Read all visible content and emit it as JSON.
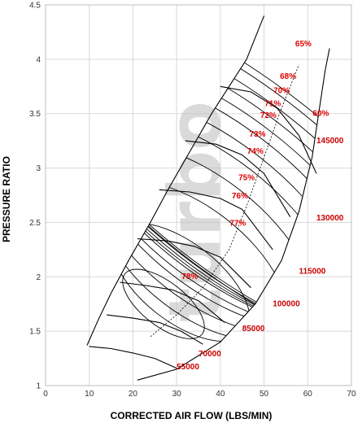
{
  "chart_data": {
    "type": "line",
    "title": "",
    "xlabel": "CORRECTED AIR FLOW (LBS/MIN)",
    "ylabel": "PRESSURE RATIO",
    "xlim": [
      0,
      70
    ],
    "ylim": [
      1,
      4.5
    ],
    "x_ticks": [
      "0",
      "10",
      "20",
      "30",
      "40",
      "50",
      "60",
      "70"
    ],
    "y_ticks": [
      "1",
      "1.5",
      "2",
      "2.5",
      "3",
      "3.5",
      "4",
      "4.5"
    ],
    "grid": true,
    "watermark": "turbo",
    "surge_line": [
      [
        9.5,
        1.37
      ],
      [
        12,
        1.6
      ],
      [
        15,
        1.85
      ],
      [
        19,
        2.15
      ],
      [
        24,
        2.5
      ],
      [
        28,
        2.8
      ],
      [
        33,
        3.15
      ],
      [
        38,
        3.5
      ],
      [
        42,
        3.75
      ],
      [
        46,
        4.0
      ],
      [
        49,
        4.3
      ],
      [
        50,
        4.4
      ]
    ],
    "choke_line": [
      [
        21,
        1.05
      ],
      [
        30,
        1.15
      ],
      [
        40,
        1.4
      ],
      [
        48,
        1.75
      ],
      [
        54,
        2.15
      ],
      [
        58,
        2.6
      ],
      [
        61,
        3.1
      ],
      [
        62.5,
        3.5
      ],
      [
        64,
        3.9
      ],
      [
        65,
        4.1
      ]
    ],
    "speed_lines": [
      {
        "name": "55000",
        "points": [
          [
            10,
            1.36
          ],
          [
            15,
            1.34
          ],
          [
            20,
            1.3
          ],
          [
            25,
            1.25
          ],
          [
            30,
            1.16
          ]
        ]
      },
      {
        "name": "70000",
        "points": [
          [
            14,
            1.65
          ],
          [
            20,
            1.62
          ],
          [
            26,
            1.58
          ],
          [
            31,
            1.5
          ],
          [
            36,
            1.38
          ]
        ]
      },
      {
        "name": "85000",
        "points": [
          [
            17,
            1.95
          ],
          [
            23,
            1.92
          ],
          [
            29,
            1.88
          ],
          [
            35,
            1.78
          ],
          [
            41,
            1.58
          ]
        ]
      },
      {
        "name": "100000",
        "points": [
          [
            21,
            2.35
          ],
          [
            28,
            2.33
          ],
          [
            34,
            2.28
          ],
          [
            40,
            2.18
          ],
          [
            47,
            1.9
          ]
        ]
      },
      {
        "name": "115000",
        "points": [
          [
            26,
            2.8
          ],
          [
            33,
            2.78
          ],
          [
            40,
            2.72
          ],
          [
            45,
            2.62
          ],
          [
            52,
            2.25
          ]
        ]
      },
      {
        "name": "130000",
        "points": [
          [
            32,
            3.25
          ],
          [
            39,
            3.22
          ],
          [
            45,
            3.12
          ],
          [
            50,
            2.95
          ],
          [
            56,
            2.55
          ]
        ]
      },
      {
        "name": "145000",
        "points": [
          [
            40,
            3.75
          ],
          [
            47,
            3.7
          ],
          [
            53,
            3.55
          ],
          [
            58,
            3.3
          ],
          [
            62,
            2.95
          ]
        ]
      }
    ],
    "speed_label_positions": [
      [
        30,
        1.15
      ],
      [
        35,
        1.27
      ],
      [
        45,
        1.5
      ],
      [
        52,
        1.73
      ],
      [
        58,
        2.03
      ],
      [
        62,
        2.52
      ],
      [
        62,
        3.23
      ]
    ],
    "efficiency_islands": [
      {
        "label": "78%",
        "center": [
          27,
          1.75
        ],
        "rx": 5,
        "ry": 0.45
      },
      {
        "label": "77%",
        "center": [
          31,
          1.95
        ],
        "rx": 9,
        "ry": 0.75
      },
      {
        "label": "76%",
        "center": [
          34,
          2.15
        ],
        "rx": 12,
        "ry": 1.0
      },
      {
        "label": "75%",
        "center": [
          36,
          2.35
        ],
        "rx": 14,
        "ry": 1.2
      },
      {
        "label": "74%",
        "center": [
          38,
          2.5
        ],
        "rx": 15,
        "ry": 1.35
      },
      {
        "label": "73%",
        "center": [
          39,
          2.6
        ],
        "rx": 16,
        "ry": 1.5
      },
      {
        "label": "72%",
        "center": [
          40,
          2.7
        ],
        "rx": 17,
        "ry": 1.65
      },
      {
        "label": "71%",
        "center": [
          41,
          2.75
        ],
        "rx": 18,
        "ry": 1.8
      },
      {
        "label": "70%",
        "center": [
          42,
          2.8
        ],
        "rx": 19,
        "ry": 1.95
      },
      {
        "label": "68%",
        "center": [
          43,
          2.85
        ],
        "rx": 20,
        "ry": 2.1
      },
      {
        "label": "65%",
        "center": [
          44,
          2.9
        ],
        "rx": 21,
        "ry": 2.3
      },
      {
        "label": "60%",
        "center": [
          45,
          2.9
        ],
        "rx": 22,
        "ry": 2.5
      }
    ],
    "efficiency_label_positions": [
      [
        33,
        1.98
      ],
      [
        44,
        2.47
      ],
      [
        44.5,
        2.72
      ],
      [
        46,
        2.89
      ],
      [
        48,
        3.13
      ],
      [
        48.5,
        3.29
      ],
      [
        51,
        3.46
      ],
      [
        52,
        3.57
      ],
      [
        54,
        3.69
      ],
      [
        55.5,
        3.82
      ],
      [
        59,
        4.12
      ],
      [
        63,
        3.48
      ]
    ],
    "operating_line": [
      [
        24,
        1.45
      ],
      [
        30,
        1.65
      ],
      [
        36,
        1.9
      ],
      [
        42,
        2.25
      ],
      [
        46,
        2.65
      ],
      [
        50,
        3.1
      ],
      [
        54,
        3.55
      ],
      [
        58,
        3.95
      ]
    ]
  }
}
